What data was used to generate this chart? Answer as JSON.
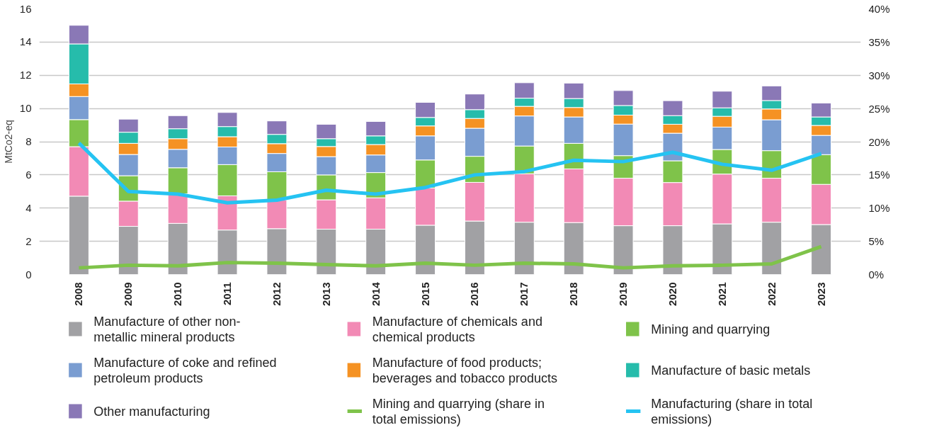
{
  "chart_data": {
    "type": "bar",
    "stacked": true,
    "ylabel": "MtCo2-eq",
    "categories": [
      "2008",
      "2009",
      "2010",
      "2011",
      "2012",
      "2013",
      "2014",
      "2015",
      "2016",
      "2017",
      "2018",
      "2019",
      "2020",
      "2021",
      "2022",
      "2023"
    ],
    "series": [
      {
        "name": "Manufacture of other non-metallic mineral products",
        "color": "#a1a1a4",
        "values": [
          4.72,
          2.9,
          3.08,
          2.68,
          2.76,
          2.73,
          2.73,
          2.97,
          3.22,
          3.15,
          3.13,
          2.94,
          2.94,
          3.05,
          3.15,
          3.01
        ]
      },
      {
        "name": "Manufacture of chemicals and chemical products",
        "color": "#f28ab5",
        "values": [
          2.98,
          1.52,
          1.78,
          2.06,
          1.74,
          1.77,
          1.89,
          2.24,
          2.33,
          2.92,
          3.23,
          2.86,
          2.6,
          3.0,
          2.65,
          2.42
        ]
      },
      {
        "name": "Mining and quarrying",
        "color": "#7fc34a",
        "values": [
          1.63,
          1.53,
          1.57,
          1.88,
          1.69,
          1.5,
          1.52,
          1.69,
          1.57,
          1.67,
          1.54,
          1.36,
          1.31,
          1.48,
          1.66,
          1.79
        ]
      },
      {
        "name": "Manufacture of coke and refined petroleum products",
        "color": "#7a9dd1",
        "values": [
          1.39,
          1.28,
          1.11,
          1.06,
          1.1,
          1.1,
          1.06,
          1.45,
          1.69,
          1.81,
          1.59,
          1.9,
          1.66,
          1.35,
          1.86,
          1.16
        ]
      },
      {
        "name": "Manufacture of food products; beverages and tobacco products",
        "color": "#f59223",
        "values": [
          0.76,
          0.67,
          0.64,
          0.62,
          0.59,
          0.61,
          0.63,
          0.6,
          0.59,
          0.58,
          0.57,
          0.54,
          0.54,
          0.65,
          0.65,
          0.6
        ]
      },
      {
        "name": "Manufacture of basic metals",
        "color": "#26bcab",
        "values": [
          2.41,
          0.67,
          0.6,
          0.61,
          0.56,
          0.47,
          0.52,
          0.51,
          0.53,
          0.49,
          0.54,
          0.58,
          0.52,
          0.51,
          0.51,
          0.51
        ]
      },
      {
        "name": "Other manufacturing",
        "color": "#8a78b6",
        "values": [
          1.12,
          0.79,
          0.79,
          0.85,
          0.81,
          0.87,
          0.87,
          0.91,
          0.94,
          0.93,
          0.93,
          0.9,
          0.9,
          1.0,
          0.88,
          0.84
        ]
      },
      {
        "name": "Mining and quarrying (share in total emissions)",
        "type": "line",
        "axis": "y2",
        "color": "#7fc34a",
        "values": [
          1.0,
          1.4,
          1.3,
          1.8,
          1.7,
          1.5,
          1.3,
          1.7,
          1.4,
          1.7,
          1.6,
          1.0,
          1.3,
          1.4,
          1.6,
          4.2
        ]
      },
      {
        "name": "Manufacturing (share in total emissions)",
        "type": "line",
        "axis": "y2",
        "color": "#25c3f2",
        "values": [
          19.8,
          12.5,
          12.1,
          10.8,
          11.2,
          12.7,
          12.1,
          13.1,
          15.0,
          15.5,
          17.2,
          17.0,
          18.4,
          16.6,
          15.7,
          18.2
        ]
      }
    ],
    "ylim": [
      0,
      16
    ],
    "yticks": [
      0,
      2,
      4,
      6,
      8,
      10,
      12,
      14,
      16
    ],
    "y2lim": [
      0,
      40
    ],
    "y2ticks": [
      {
        "value": 0,
        "label": "0%"
      },
      {
        "value": 5,
        "label": "5%"
      },
      {
        "value": 10,
        "label": "10%"
      },
      {
        "value": 15,
        "label": "15%"
      },
      {
        "value": 20,
        "label": "20%"
      },
      {
        "value": 25,
        "label": "25%"
      },
      {
        "value": 30,
        "label": "30%"
      },
      {
        "value": 35,
        "label": "35%"
      },
      {
        "value": 40,
        "label": "40%"
      }
    ],
    "grid": "y",
    "legend": "bottom",
    "line_style": "solid",
    "marker": "none"
  }
}
